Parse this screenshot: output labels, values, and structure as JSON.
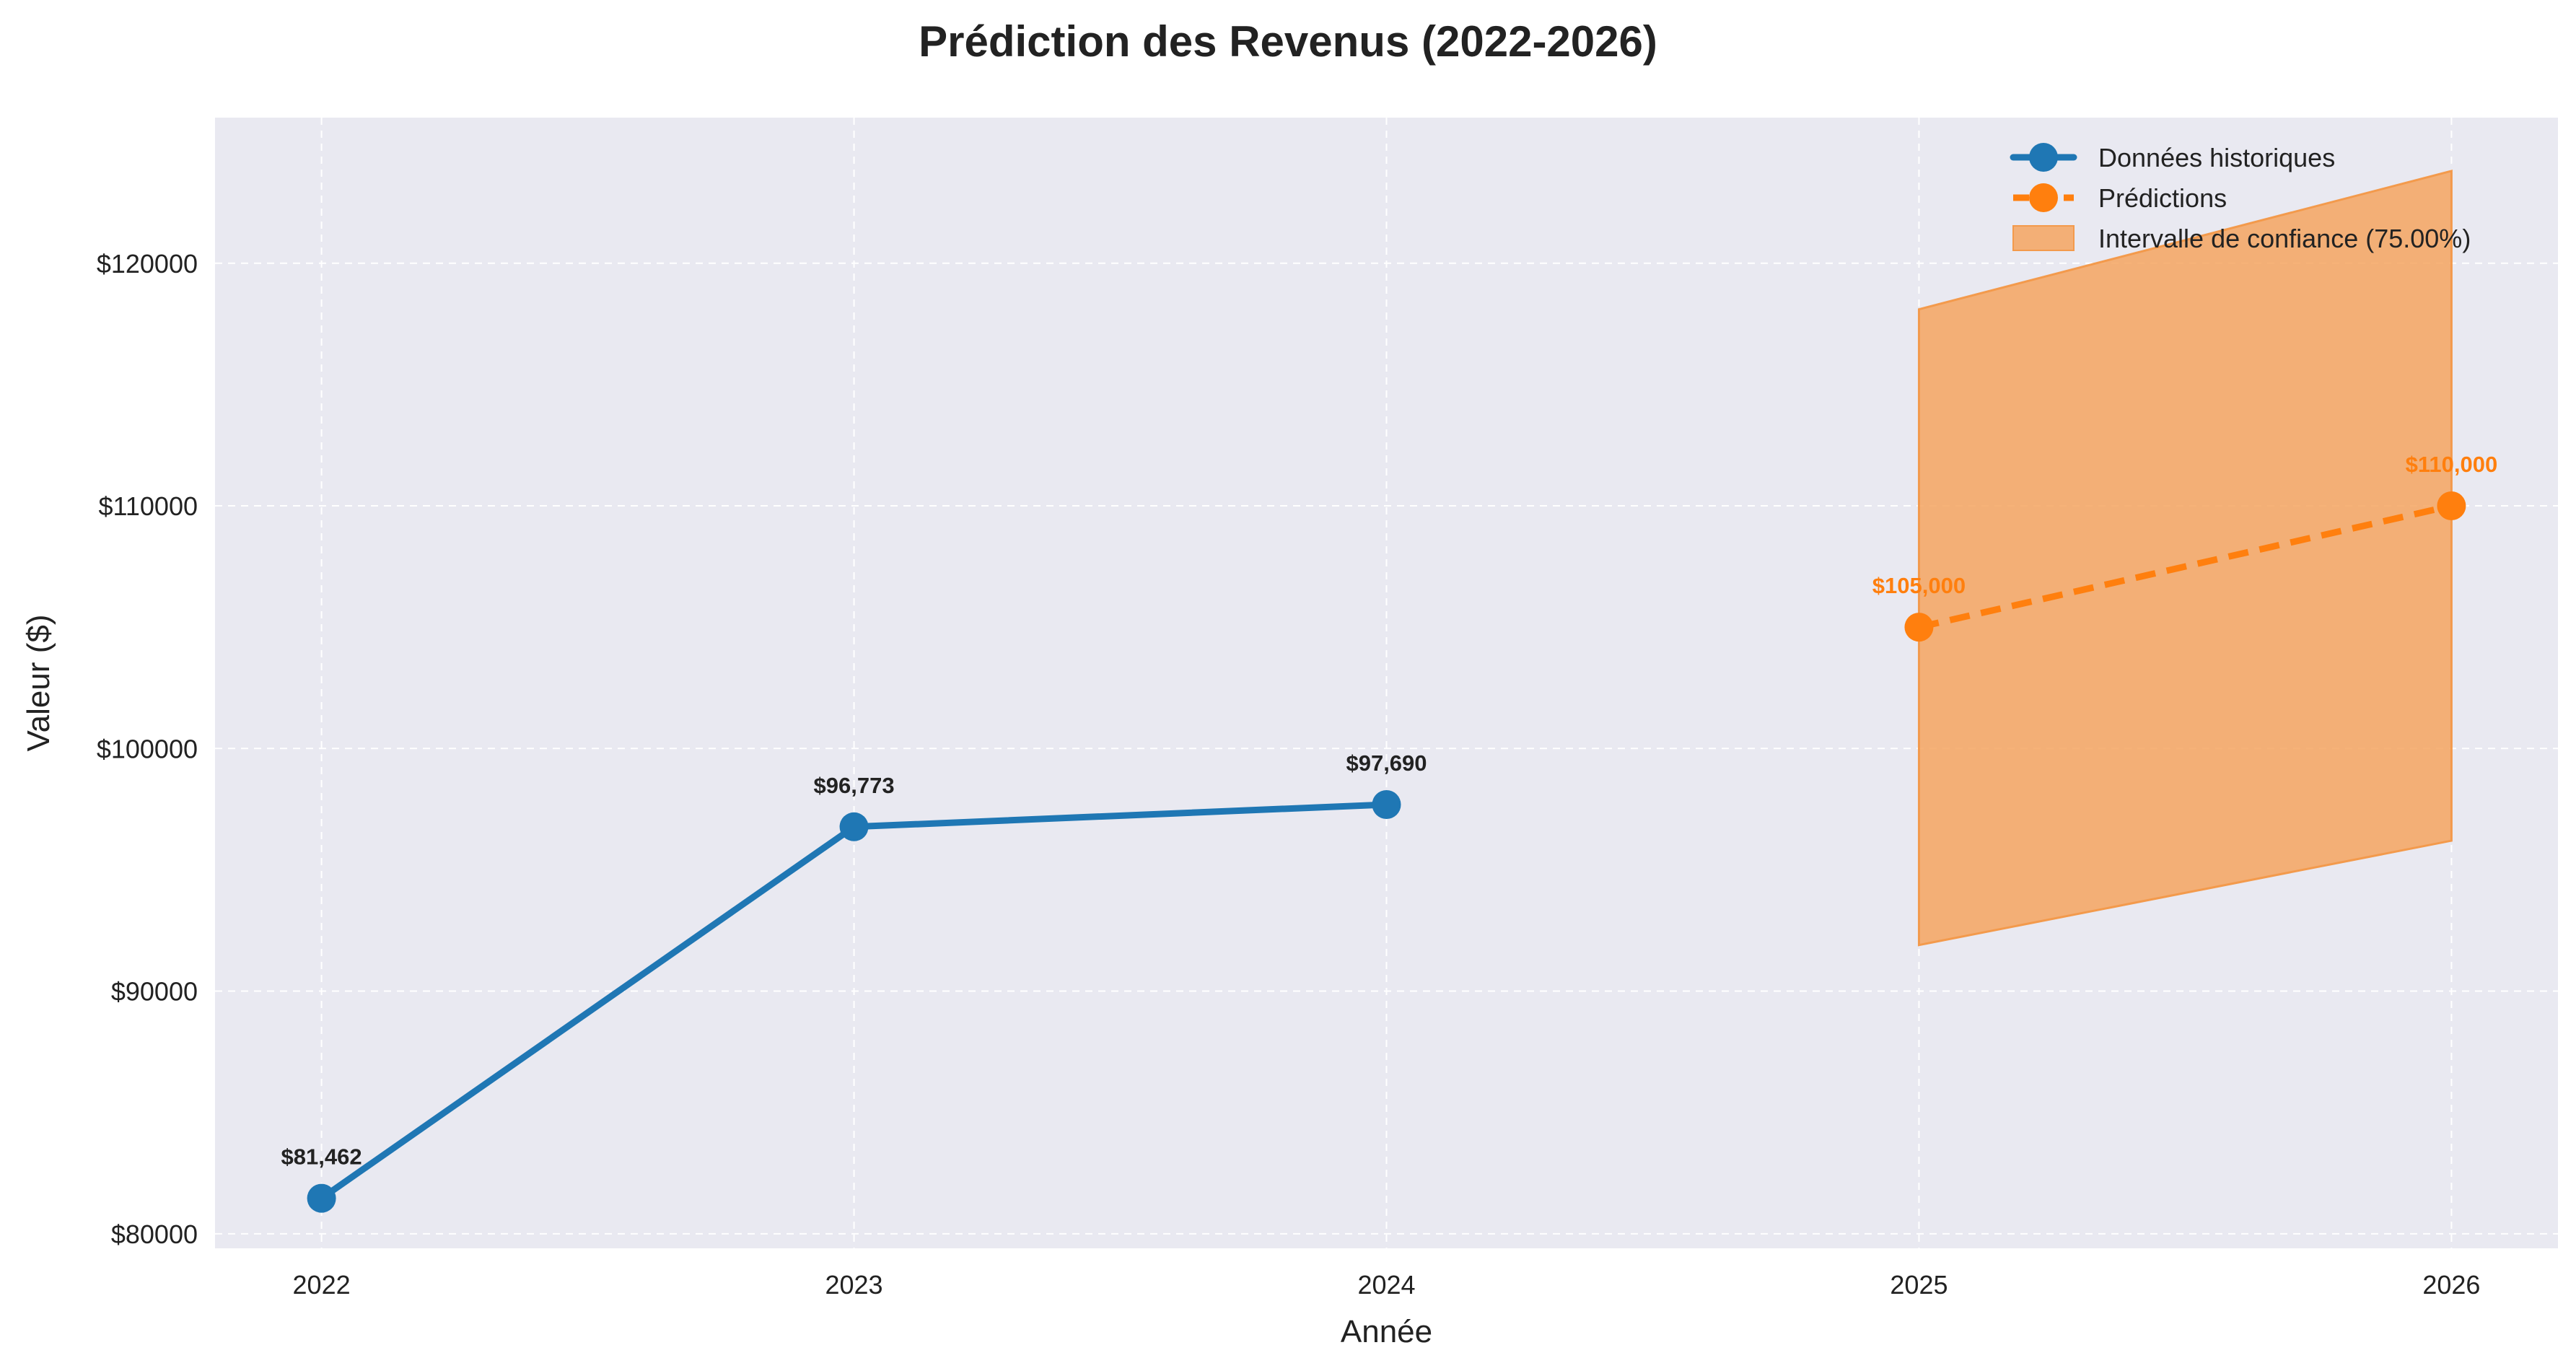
{
  "chart_data": {
    "type": "line",
    "title": "Prédiction des Revenus (2022-2026)",
    "xlabel": "Année",
    "ylabel": "Valeur ($)",
    "xlim": [
      2021.8,
      2026.2
    ],
    "ylim": [
      79400,
      126000
    ],
    "x_ticks": [
      2022,
      2023,
      2024,
      2025,
      2026
    ],
    "x_tick_labels": [
      "2022",
      "2023",
      "2024",
      "2025",
      "2026"
    ],
    "y_ticks": [
      80000,
      90000,
      100000,
      110000,
      120000
    ],
    "y_tick_labels": [
      "$80000",
      "$90000",
      "$100000",
      "$110000",
      "$120000"
    ],
    "grid": true,
    "legend_position": "top-right",
    "legend": [
      {
        "label": "Données historiques",
        "type": "line-marker",
        "color": "#1f77b4"
      },
      {
        "label": "Prédictions",
        "type": "dashed-line-marker",
        "color": "#ff7f0e"
      },
      {
        "label": "Intervalle de confiance (75.00%)",
        "type": "area",
        "color": "#f4a460"
      }
    ],
    "series": [
      {
        "name": "Données historiques",
        "style": "solid",
        "color": "#1f77b4",
        "x": [
          2022,
          2023,
          2024
        ],
        "y": [
          81462,
          96773,
          97690
        ],
        "labels": [
          "$81,462",
          "$96,773",
          "$97,690"
        ]
      },
      {
        "name": "Prédictions",
        "style": "dashed",
        "color": "#ff7f0e",
        "x": [
          2025,
          2026
        ],
        "y": [
          105000,
          110000
        ],
        "labels": [
          "$105,000",
          "$110,000"
        ]
      }
    ],
    "confidence_interval": {
      "name": "Intervalle de confiance (75.00%)",
      "color": "#f4a460",
      "x": [
        2025,
        2026
      ],
      "lower": [
        91900,
        96200
      ],
      "upper": [
        118100,
        123800
      ]
    },
    "colors": {
      "plot_background": "#e9e9f1",
      "grid": "#ffffff",
      "historical_label": "#222222",
      "prediction_label": "#ff7f0e"
    }
  }
}
